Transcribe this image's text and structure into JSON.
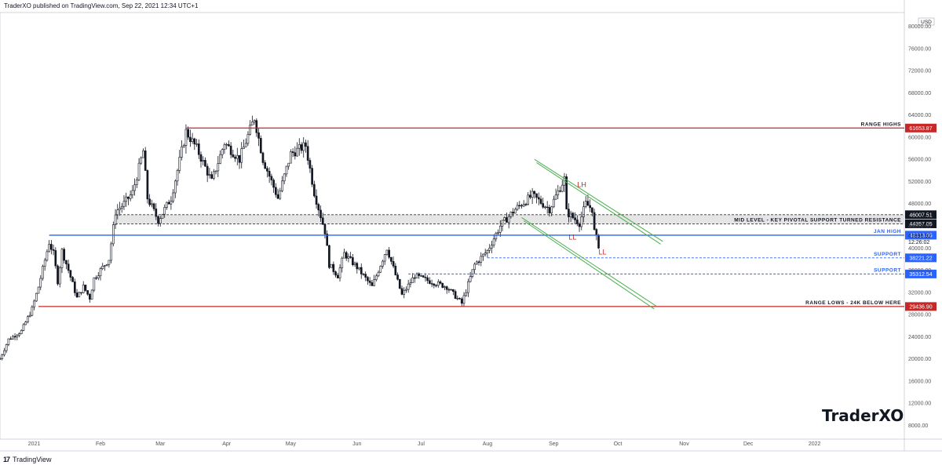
{
  "header": {
    "publisher_line": "TraderXO published on TradingView.com, Sep 22, 2021 12:34 UTC+1"
  },
  "footer": {
    "logo": "17",
    "brand": "TradingView"
  },
  "watermark": "TraderXO",
  "colors": {
    "up": "#131722",
    "down": "#131722",
    "range_line": "#c62828",
    "jan_high_line": "#2962ff",
    "support_line": "#2962ff",
    "channel": "#4caf50",
    "annotation_red": "#c62828",
    "zone_fill": "#e0e0e0"
  },
  "chart_data": {
    "type": "candlestick",
    "currency_label": "USD",
    "ylim": [
      5500,
      82500
    ],
    "y_ticks": [
      8000,
      12000,
      16000,
      20000,
      24000,
      28000,
      32000,
      36000,
      40000,
      44000,
      48000,
      52000,
      56000,
      60000,
      64000,
      68000,
      72000,
      76000,
      80000
    ],
    "x_ticks": [
      {
        "label": "2021",
        "date": "2021-01-01"
      },
      {
        "label": "Feb",
        "date": "2021-02-01"
      },
      {
        "label": "Mar",
        "date": "2021-03-01"
      },
      {
        "label": "Apr",
        "date": "2021-04-01"
      },
      {
        "label": "May",
        "date": "2021-05-01"
      },
      {
        "label": "Jun",
        "date": "2021-06-01"
      },
      {
        "label": "Jul",
        "date": "2021-07-01"
      },
      {
        "label": "Aug",
        "date": "2021-08-01"
      },
      {
        "label": "Sep",
        "date": "2021-09-01"
      },
      {
        "label": "Oct",
        "date": "2021-10-01"
      },
      {
        "label": "Nov",
        "date": "2021-11-01"
      },
      {
        "label": "Dec",
        "date": "2021-12-01"
      },
      {
        "label": "2022",
        "date": "2022-01-01"
      }
    ],
    "x_range": [
      "2020-12-16",
      "2022-02-12"
    ],
    "price_anchors": [
      [
        "2020-12-16",
        20000
      ],
      [
        "2020-12-20",
        23500
      ],
      [
        "2020-12-26",
        25000
      ],
      [
        "2020-12-31",
        29000
      ],
      [
        "2021-01-03",
        33000
      ],
      [
        "2021-01-08",
        41000
      ],
      [
        "2021-01-10",
        39000
      ],
      [
        "2021-01-12",
        34000
      ],
      [
        "2021-01-14",
        39500
      ],
      [
        "2021-01-17",
        36000
      ],
      [
        "2021-01-21",
        31000
      ],
      [
        "2021-01-24",
        33000
      ],
      [
        "2021-01-27",
        31000
      ],
      [
        "2021-01-29",
        34500
      ],
      [
        "2021-02-05",
        38000
      ],
      [
        "2021-02-08",
        46500
      ],
      [
        "2021-02-12",
        48000
      ],
      [
        "2021-02-16",
        50000
      ],
      [
        "2021-02-21",
        57500
      ],
      [
        "2021-02-23",
        49000
      ],
      [
        "2021-02-28",
        45000
      ],
      [
        "2021-03-06",
        49000
      ],
      [
        "2021-03-09",
        54000
      ],
      [
        "2021-03-13",
        61000
      ],
      [
        "2021-03-18",
        58000
      ],
      [
        "2021-03-25",
        52000
      ],
      [
        "2021-03-31",
        59000
      ],
      [
        "2021-04-07",
        56000
      ],
      [
        "2021-04-14",
        63500
      ],
      [
        "2021-04-18",
        56000
      ],
      [
        "2021-04-25",
        49000
      ],
      [
        "2021-05-01",
        57000
      ],
      [
        "2021-05-08",
        58500
      ],
      [
        "2021-05-12",
        50000
      ],
      [
        "2021-05-17",
        43000
      ],
      [
        "2021-05-19",
        37000
      ],
      [
        "2021-05-23",
        35000
      ],
      [
        "2021-05-26",
        39000
      ],
      [
        "2021-06-01",
        36500
      ],
      [
        "2021-06-08",
        33000
      ],
      [
        "2021-06-15",
        40000
      ],
      [
        "2021-06-22",
        31500
      ],
      [
        "2021-06-28",
        35000
      ],
      [
        "2021-07-05",
        34000
      ],
      [
        "2021-07-13",
        33000
      ],
      [
        "2021-07-20",
        30000
      ],
      [
        "2021-07-26",
        37000
      ],
      [
        "2021-08-01",
        39500
      ],
      [
        "2021-08-07",
        44000
      ],
      [
        "2021-08-14",
        47000
      ],
      [
        "2021-08-22",
        49500
      ],
      [
        "2021-08-30",
        47000
      ],
      [
        "2021-09-06",
        52500
      ],
      [
        "2021-09-07",
        46500
      ],
      [
        "2021-09-13",
        44500
      ],
      [
        "2021-09-16",
        48000
      ],
      [
        "2021-09-19",
        47000
      ],
      [
        "2021-09-20",
        43000
      ],
      [
        "2021-09-22",
        40500
      ]
    ],
    "horizontal_levels": [
      {
        "name": "range-highs",
        "price": 61653.87,
        "label": "RANGE HIGHS",
        "tag": "61653.87",
        "style": "solid",
        "color": "#c62828",
        "tag_bg": "#c62828",
        "from": "2021-03-13"
      },
      {
        "name": "mid-level-upper",
        "price": 46007.51,
        "label": "",
        "tag": "46007.51",
        "style": "dashed",
        "color": "#333333",
        "tag_bg": "#131722",
        "from": "2021-02-08"
      },
      {
        "name": "mid-level-lower",
        "price": 44357.05,
        "label": "MID LEVEL - KEY PIVOTAL SUPPORT TURNED RESISTANCE",
        "tag": "44357.05",
        "style": "dashed",
        "color": "#333333",
        "tag_bg": "#131722",
        "from": "2021-02-08"
      },
      {
        "name": "jan-high",
        "price": 42313.05,
        "label": "JAN HIGH",
        "tag": "42313.05",
        "style": "solid",
        "color": "#2962ff",
        "tag_bg": "#2962ff",
        "from": "2021-01-08"
      },
      {
        "name": "support-1",
        "price": 38221.22,
        "label": "SUPPORT",
        "tag": "38221.22",
        "style": "dashed",
        "color": "#2962ff",
        "tag_bg": "#2962ff",
        "from": "2021-08-01"
      },
      {
        "name": "support-2",
        "price": 35312.54,
        "label": "SUPPORT",
        "tag": "35312.54",
        "style": "dashed",
        "color": "#2962ff",
        "tag_bg": "#2962ff",
        "from": "2021-06-25"
      },
      {
        "name": "range-lows",
        "price": 29436.9,
        "label": "RANGE LOWS - 24K BELOW HERE",
        "tag": "29436.90",
        "style": "solid",
        "color": "#c62828",
        "tag_bg": "#c62828",
        "from": "2021-01-03"
      }
    ],
    "zone": {
      "from_price": 44357.05,
      "to_price": 46007.51,
      "from": "2021-02-08"
    },
    "current_price": {
      "price": 41990.92,
      "label": "41990.92",
      "countdown": "12:26:02"
    },
    "channel_lines": [
      {
        "name": "channel-upper-outer",
        "from": [
          "2021-08-23",
          56000
        ],
        "to": [
          "2021-10-22",
          41200
        ]
      },
      {
        "name": "channel-upper-inner",
        "from": [
          "2021-08-24",
          55400
        ],
        "to": [
          "2021-10-21",
          40700
        ]
      },
      {
        "name": "channel-lower-outer",
        "from": [
          "2021-08-17",
          45500
        ],
        "to": [
          "2021-10-19",
          29500
        ]
      },
      {
        "name": "channel-lower-inner",
        "from": [
          "2021-08-18",
          44900
        ],
        "to": [
          "2021-10-18",
          29000
        ]
      }
    ],
    "annotations": [
      {
        "name": "lh-label",
        "text": "LH",
        "date": "2021-09-12",
        "price": 51000
      },
      {
        "name": "ll-label-1",
        "text": "LL",
        "date": "2021-09-08",
        "price": 41500
      },
      {
        "name": "ll-label-2",
        "text": "LL",
        "date": "2021-09-22",
        "price": 38800
      }
    ]
  }
}
